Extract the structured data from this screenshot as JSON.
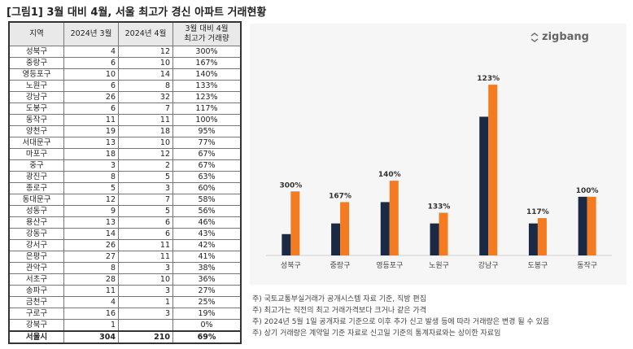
{
  "title": "[그림1] 3월 대비 4월, 서울 최고가 경신 아파트 거래현황",
  "table": {
    "headers": [
      "지역",
      "2024년 3월",
      "2024년 4월",
      "3월 대비 4월\n최고가 거래량"
    ],
    "rows": [
      [
        "성북구",
        "4",
        "12",
        "300%"
      ],
      [
        "중랑구",
        "6",
        "10",
        "167%"
      ],
      [
        "영등포구",
        "10",
        "14",
        "140%"
      ],
      [
        "노원구",
        "6",
        "8",
        "133%"
      ],
      [
        "강남구",
        "26",
        "32",
        "123%"
      ],
      [
        "도봉구",
        "6",
        "7",
        "117%"
      ],
      [
        "동작구",
        "11",
        "11",
        "100%"
      ],
      [
        "양천구",
        "19",
        "18",
        "95%"
      ],
      [
        "서대문구",
        "13",
        "10",
        "77%"
      ],
      [
        "마포구",
        "18",
        "12",
        "67%"
      ],
      [
        "중구",
        "3",
        "2",
        "67%"
      ],
      [
        "광진구",
        "8",
        "5",
        "63%"
      ],
      [
        "종로구",
        "5",
        "3",
        "60%"
      ],
      [
        "동대문구",
        "12",
        "7",
        "58%"
      ],
      [
        "성동구",
        "9",
        "5",
        "56%"
      ],
      [
        "용산구",
        "13",
        "6",
        "46%"
      ],
      [
        "강동구",
        "14",
        "6",
        "43%"
      ],
      [
        "강서구",
        "26",
        "11",
        "42%"
      ],
      [
        "은평구",
        "27",
        "11",
        "41%"
      ],
      [
        "관악구",
        "8",
        "3",
        "38%"
      ],
      [
        "서초구",
        "28",
        "10",
        "36%"
      ],
      [
        "송파구",
        "11",
        "3",
        "27%"
      ],
      [
        "금천구",
        "4",
        "1",
        "25%"
      ],
      [
        "구로구",
        "16",
        "3",
        "19%"
      ],
      [
        "강북구",
        "1",
        "",
        "0%"
      ]
    ],
    "total": [
      "서울시",
      "304",
      "210",
      "69%"
    ]
  },
  "logo": "zigbang",
  "chart_data": {
    "type": "bar",
    "categories": [
      "성북구",
      "중랑구",
      "영등포구",
      "노원구",
      "강남구",
      "도봉구",
      "동작구"
    ],
    "series": [
      {
        "values": [
          4,
          6,
          10,
          6,
          26,
          6,
          11
        ],
        "color": "#1b2a44"
      },
      {
        "values": [
          12,
          10,
          14,
          8,
          32,
          7,
          11
        ],
        "color": "#f47b20"
      }
    ],
    "data_labels": [
      "300%",
      "167%",
      "140%",
      "133%",
      "123%",
      "117%",
      "100%"
    ],
    "ylim": [
      0,
      34
    ],
    "grid": false,
    "title": "",
    "xlabel": "",
    "ylabel": ""
  },
  "notes": [
    "주) 국토교통부실거래가 공개시스템 자료 기준, 직방 편집",
    "주) 최고가는 직전의 최고 거래가격보다 크거나 같은 가격",
    "주) 2024년 5월 1일 공개자료 기준으로 이후 추가 신고 발생 등에 따라 거래량은 변경 될 수 있음",
    "주) 상기 거래량은 계약일 기준 자료로 신고일 기준의  통계자료와는 상이한 자료임"
  ]
}
